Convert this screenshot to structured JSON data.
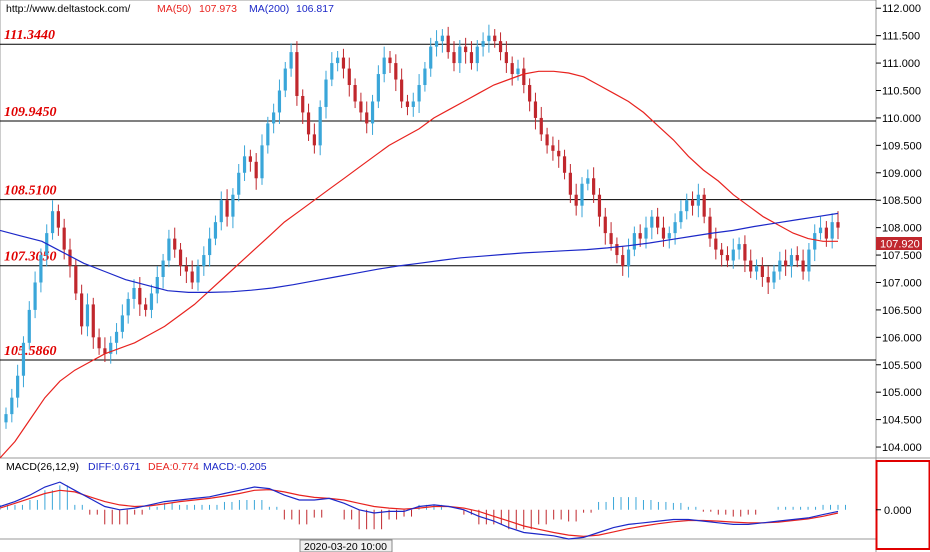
{
  "header": {
    "url": "http://www.deltastock.com/",
    "ma50_label": "MA(50)",
    "ma50_value": "107.973",
    "ma200_label": "MA(200)",
    "ma200_value": "106.817"
  },
  "colors": {
    "bull": "#3aa6d9",
    "bear": "#c0272d",
    "ma50": "#e8231f",
    "ma200": "#1c28c8",
    "level": "#000000",
    "level_label": "#e00000",
    "current_price_bg": "#c0272d",
    "diff": "#1c28c8",
    "dea": "#e8231f",
    "macd_pos": "#3aa6d9",
    "macd_neg": "#c0272d",
    "highlight_box": "#e00000"
  },
  "chart_data": [
    {
      "type": "candlestick",
      "title": "",
      "ylim": [
        103.8,
        112.15
      ],
      "yticks": [
        "112.000",
        "111.500",
        "111.000",
        "110.500",
        "110.000",
        "109.500",
        "109.000",
        "108.500",
        "108.000",
        "107.500",
        "107.000",
        "106.500",
        "106.000",
        "105.500",
        "105.000",
        "104.500",
        "104.000"
      ],
      "current_price": "107.920",
      "levels": [
        {
          "value": 111.344,
          "label": "111.3440"
        },
        {
          "value": 109.945,
          "label": "109.9450"
        },
        {
          "value": 108.51,
          "label": "108.5100"
        },
        {
          "value": 107.305,
          "label": "107.3050"
        },
        {
          "value": 105.586,
          "label": "105.5860"
        }
      ],
      "closes": [
        104.6,
        104.9,
        105.3,
        105.9,
        106.5,
        107.0,
        107.5,
        107.9,
        108.3,
        108.0,
        107.6,
        107.3,
        106.8,
        106.2,
        106.6,
        106.0,
        105.8,
        105.7,
        105.9,
        106.1,
        106.4,
        106.7,
        106.9,
        106.6,
        106.5,
        106.8,
        107.1,
        107.4,
        107.8,
        107.6,
        107.3,
        107.2,
        107.0,
        107.3,
        107.5,
        107.8,
        108.1,
        108.5,
        108.2,
        108.6,
        109.0,
        109.3,
        109.2,
        108.9,
        109.5,
        109.9,
        110.1,
        110.5,
        110.9,
        111.2,
        110.4,
        110.1,
        109.7,
        109.5,
        110.2,
        110.7,
        111.0,
        111.1,
        110.9,
        110.6,
        110.3,
        110.1,
        109.9,
        110.3,
        110.8,
        111.1,
        111.0,
        110.7,
        110.3,
        110.2,
        110.3,
        110.6,
        110.9,
        111.3,
        111.4,
        111.5,
        111.2,
        111.0,
        111.3,
        111.2,
        111.0,
        111.3,
        111.4,
        111.5,
        111.4,
        111.2,
        111.0,
        110.8,
        110.9,
        110.6,
        110.3,
        110.0,
        109.7,
        109.5,
        109.4,
        109.3,
        109.0,
        108.6,
        108.4,
        108.8,
        108.9,
        108.6,
        108.2,
        107.9,
        107.7,
        107.5,
        107.3,
        107.6,
        107.9,
        107.8,
        108.0,
        108.2,
        108.0,
        107.8,
        107.9,
        108.1,
        108.3,
        108.5,
        108.4,
        108.6,
        108.2,
        107.8,
        107.6,
        107.5,
        107.4,
        107.6,
        107.7,
        107.4,
        107.2,
        107.3,
        107.1,
        107.0,
        107.2,
        107.4,
        107.3,
        107.5,
        107.4,
        107.2,
        107.6,
        107.9,
        108.0,
        107.8,
        108.1,
        108.0
      ],
      "ma50": [
        103.8,
        104.1,
        104.5,
        104.9,
        105.2,
        105.4,
        105.55,
        105.7,
        105.8,
        105.9,
        106.05,
        106.2,
        106.4,
        106.6,
        106.85,
        107.1,
        107.35,
        107.6,
        107.85,
        108.1,
        108.3,
        108.5,
        108.7,
        108.9,
        109.1,
        109.3,
        109.5,
        109.65,
        109.8,
        110.0,
        110.15,
        110.3,
        110.45,
        110.6,
        110.7,
        110.8,
        110.85,
        110.85,
        110.82,
        110.75,
        110.6,
        110.45,
        110.3,
        110.1,
        109.85,
        109.6,
        109.3,
        109.05,
        108.85,
        108.6,
        108.4,
        108.2,
        108.05,
        107.9,
        107.8,
        107.75,
        107.75
      ],
      "ma200": [
        107.95,
        107.85,
        107.75,
        107.55,
        107.35,
        107.2,
        107.05,
        106.95,
        106.85,
        106.82,
        106.82,
        106.83,
        106.86,
        106.9,
        106.96,
        107.03,
        107.1,
        107.17,
        107.24,
        107.3,
        107.35,
        107.4,
        107.45,
        107.48,
        107.51,
        107.54,
        107.56,
        107.58,
        107.6,
        107.63,
        107.67,
        107.72,
        107.78,
        107.84,
        107.9,
        107.95,
        108.02,
        108.08,
        108.14,
        108.2,
        108.26
      ]
    },
    {
      "type": "macd",
      "title": "MACD(26,12,9)",
      "diff_label": "DIFF:0.671",
      "dea_label": "DEA:0.774",
      "macd_label": "MACD:-0.205",
      "ylim": [
        -0.9,
        1.1
      ],
      "yticks": [
        "0.000"
      ],
      "x_label": "2020-03-20 10:00",
      "diff": [
        0.1,
        0.25,
        0.45,
        0.7,
        0.85,
        0.6,
        0.35,
        0.1,
        0.0,
        0.05,
        0.15,
        0.25,
        0.3,
        0.35,
        0.4,
        0.5,
        0.6,
        0.7,
        0.65,
        0.45,
        0.3,
        0.3,
        0.35,
        0.2,
        0.0,
        -0.1,
        -0.05,
        -0.05,
        0.1,
        0.15,
        0.1,
        0.0,
        -0.2,
        -0.35,
        -0.55,
        -0.7,
        -0.75,
        -0.8,
        -0.9,
        -0.85,
        -0.7,
        -0.55,
        -0.45,
        -0.4,
        -0.35,
        -0.3,
        -0.3,
        -0.35,
        -0.4,
        -0.45,
        -0.45,
        -0.4,
        -0.35,
        -0.3,
        -0.25,
        -0.15,
        -0.05
      ],
      "dea": [
        0.05,
        0.2,
        0.35,
        0.5,
        0.6,
        0.55,
        0.4,
        0.25,
        0.15,
        0.1,
        0.12,
        0.18,
        0.25,
        0.3,
        0.35,
        0.42,
        0.5,
        0.6,
        0.62,
        0.55,
        0.45,
        0.38,
        0.35,
        0.3,
        0.2,
        0.1,
        0.05,
        0.02,
        0.05,
        0.1,
        0.1,
        0.05,
        -0.05,
        -0.2,
        -0.35,
        -0.5,
        -0.6,
        -0.7,
        -0.78,
        -0.82,
        -0.78,
        -0.68,
        -0.58,
        -0.5,
        -0.43,
        -0.37,
        -0.33,
        -0.33,
        -0.35,
        -0.38,
        -0.4,
        -0.4,
        -0.38,
        -0.33,
        -0.28,
        -0.2,
        -0.1
      ]
    }
  ]
}
